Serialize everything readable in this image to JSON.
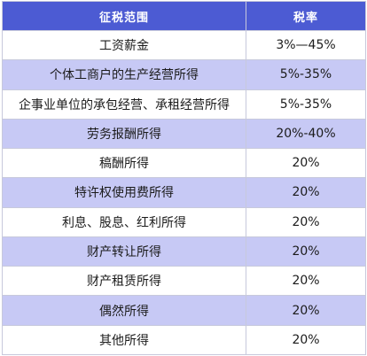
{
  "table": {
    "headers": {
      "scope": "征税范围",
      "rate": "税率"
    },
    "rows": [
      {
        "scope": "工资薪金",
        "rate": "3%—45%"
      },
      {
        "scope": "个体工商户的生产经营所得",
        "rate": "5%-35%"
      },
      {
        "scope": "企事业单位的承包经营、承租经营所得",
        "rate": "5%-35%"
      },
      {
        "scope": "劳务报酬所得",
        "rate": "20%-40%"
      },
      {
        "scope": "稿酬所得",
        "rate": "20%"
      },
      {
        "scope": "特许权使用费所得",
        "rate": "20%"
      },
      {
        "scope": "利息、股息、红利所得",
        "rate": "20%"
      },
      {
        "scope": "财产转让所得",
        "rate": "20%"
      },
      {
        "scope": "财产租赁所得",
        "rate": "20%"
      },
      {
        "scope": "偶然所得",
        "rate": "20%"
      },
      {
        "scope": "其他所得",
        "rate": "20%"
      }
    ],
    "colors": {
      "header_bg": "#4c5bd3",
      "stripe_bg": "#c7c9f5",
      "border": "#c7c9dc"
    }
  }
}
